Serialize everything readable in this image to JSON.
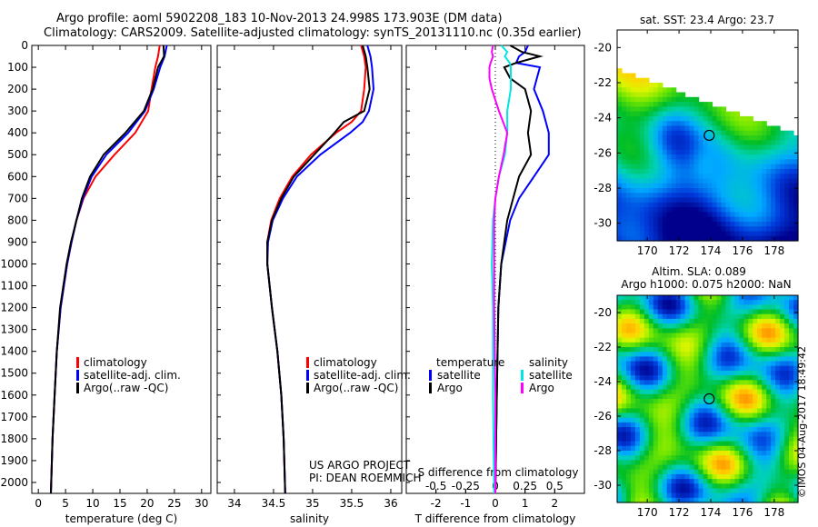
{
  "title_line1": "Argo profile: aoml 5902208_183 10-Nov-2013 24.998S 173.903E (DM data)",
  "title_line2": "Climatology: CARS2009. Satellite-adjusted climatology: synTS_20131110.nc (0.35d earlier)",
  "credit": "©IMOS 04-Aug-2017 18:49:42",
  "project_line1": "US ARGO PROJECT",
  "project_line2": "PI: DEAN ROEMMICH",
  "colors": {
    "climatology": "#ff0000",
    "satellite": "#0000ff",
    "argo": "#000000",
    "s_satellite": "#00e5e5",
    "s_argo": "#ff00ff"
  },
  "chart_data": [
    {
      "type": "line",
      "name": "temperature-profile",
      "xlabel": "temperature (deg C)",
      "ylabel": "",
      "xlim": [
        -1.2,
        31.7
      ],
      "ylim": [
        2050,
        0
      ],
      "xticks": [
        0,
        5,
        10,
        15,
        20,
        25,
        30
      ],
      "yticks": [
        0,
        100,
        200,
        300,
        400,
        500,
        600,
        700,
        800,
        900,
        1000,
        1100,
        1200,
        1300,
        1400,
        1500,
        1600,
        1700,
        1800,
        1900,
        2000
      ],
      "depth": [
        0,
        50,
        100,
        200,
        300,
        400,
        500,
        600,
        700,
        800,
        900,
        1000,
        1200,
        1400,
        1600,
        1800,
        2050
      ],
      "series": [
        {
          "name": "climatology",
          "color": "#ff0000",
          "values": [
            22.3,
            22,
            21.5,
            20.8,
            20.2,
            17.8,
            14,
            10.5,
            8.3,
            7,
            6.1,
            5.3,
            4.1,
            3.4,
            3,
            2.6,
            2.3
          ]
        },
        {
          "name": "satellite-adj. clim.",
          "color": "#0000ff",
          "values": [
            23.6,
            23.2,
            22.4,
            21.2,
            19.6,
            16.5,
            12.5,
            9.8,
            8.2,
            7,
            6.1,
            5.3,
            4.1,
            3.4,
            3,
            2.6,
            2.3
          ]
        },
        {
          "name": "Argo(..raw -QC)",
          "color": "#000000",
          "values": [
            23,
            23.1,
            22,
            21,
            19.4,
            16,
            12,
            9.5,
            8,
            7,
            6,
            5.2,
            4,
            3.4,
            3,
            2.6,
            2.3
          ]
        }
      ],
      "legend": [
        "climatology",
        "satellite-adj. clim.",
        "Argo(..raw -QC)"
      ],
      "legend_position": "lower-center"
    },
    {
      "type": "line",
      "name": "salinity-profile",
      "xlabel": "salinity",
      "xlim": [
        33.78,
        36.14
      ],
      "ylim": [
        2050,
        0
      ],
      "xticks": [
        34,
        34.5,
        35,
        35.5,
        36
      ],
      "depth": [
        0,
        50,
        100,
        200,
        300,
        350,
        400,
        500,
        600,
        700,
        800,
        900,
        1000,
        1200,
        1400,
        1600,
        1800,
        2050
      ],
      "series": [
        {
          "name": "climatology",
          "color": "#ff0000",
          "values": [
            35.62,
            35.66,
            35.68,
            35.66,
            35.62,
            35.5,
            35.3,
            34.98,
            34.74,
            34.58,
            34.47,
            34.42,
            34.42,
            34.48,
            34.55,
            34.6,
            34.63,
            34.65
          ]
        },
        {
          "name": "satellite-adj. clim.",
          "color": "#0000ff",
          "values": [
            35.7,
            35.74,
            35.76,
            35.78,
            35.72,
            35.64,
            35.48,
            35.1,
            34.8,
            34.62,
            34.49,
            34.43,
            34.42,
            34.48,
            34.55,
            34.6,
            34.63,
            34.65
          ]
        },
        {
          "name": "Argo(..raw -QC)",
          "color": "#000000",
          "values": [
            35.64,
            35.68,
            35.7,
            35.73,
            35.66,
            35.4,
            35.28,
            35.02,
            34.76,
            34.6,
            34.48,
            34.42,
            34.42,
            34.48,
            34.55,
            34.6,
            34.63,
            34.65
          ]
        }
      ],
      "legend": [
        "climatology",
        "satellite-adj. clim.",
        "Argo(..raw -QC)"
      ]
    },
    {
      "type": "line",
      "name": "difference-profile",
      "xlabel": "T difference from climatology",
      "x2label": "S difference from climatology",
      "xlim": [
        -3,
        3
      ],
      "x2lim": [
        -0.75,
        0.75
      ],
      "ylim": [
        2050,
        0
      ],
      "xticks": [
        -2,
        -1,
        0,
        1,
        2
      ],
      "x2ticks": [
        "-0.5",
        "-0.25",
        "0",
        "0.25",
        "0.5"
      ],
      "x2tick_values": [
        -0.5,
        -0.25,
        0,
        0.25,
        0.5
      ],
      "depth": [
        0,
        30,
        50,
        80,
        100,
        150,
        200,
        300,
        400,
        500,
        600,
        700,
        800,
        1000,
        1200,
        1600,
        2050
      ],
      "series": [
        {
          "name": "temperature satellite",
          "axis": "T",
          "color": "#0000ff",
          "values": [
            1.1,
            1.0,
            0.8,
            0.7,
            1.5,
            1.4,
            1.3,
            1.6,
            1.8,
            1.8,
            1.3,
            0.8,
            0.5,
            0.2,
            0.1,
            0.05,
            0
          ]
        },
        {
          "name": "temperature Argo",
          "axis": "T",
          "color": "#000000",
          "values": [
            0.5,
            0.9,
            1.5,
            0.7,
            0.3,
            0.5,
            1.0,
            1.2,
            1.1,
            1.2,
            0.8,
            0.6,
            0.4,
            0.2,
            0.1,
            0.05,
            0
          ]
        },
        {
          "name": "salinity satellite",
          "axis": "S",
          "color": "#00e5e5",
          "values": [
            0.05,
            0.1,
            0.08,
            0.12,
            0.13,
            0.13,
            0.13,
            0.1,
            0.1,
            0.08,
            0.03,
            0,
            -0.02,
            -0.03,
            -0.02,
            -0.02,
            -0.01
          ]
        },
        {
          "name": "salinity Argo",
          "axis": "S",
          "color": "#ff00ff",
          "values": [
            -0.02,
            -0.03,
            -0.02,
            -0.04,
            -0.05,
            -0.05,
            -0.03,
            0.03,
            0.1,
            0.07,
            0.03,
            0,
            -0.01,
            -0.01,
            -0.01,
            0,
            0
          ]
        }
      ],
      "legend_headers": [
        "temperature",
        "salinity"
      ],
      "legend": {
        "temperature": [
          "satellite",
          "Argo"
        ],
        "salinity": [
          "satellite",
          "Argo"
        ]
      }
    },
    {
      "type": "heatmap",
      "name": "sst-map",
      "title": "sat. SST: 23.4  Argo: 23.7",
      "xticks": [
        170,
        172,
        174,
        176,
        178
      ],
      "yticks": [
        -20,
        -22,
        -24,
        -26,
        -28,
        -30
      ],
      "xlim": [
        168.1,
        179.5
      ],
      "ylim": [
        -31,
        -19
      ],
      "marker": {
        "lon": 173.903,
        "lat": -24.998
      }
    },
    {
      "type": "heatmap",
      "name": "sla-map",
      "title_line1": "Altim. SLA: 0.089",
      "title_line2": "Argo h1000: 0.075 h2000: NaN",
      "xticks": [
        170,
        172,
        174,
        176,
        178
      ],
      "yticks": [
        -20,
        -22,
        -24,
        -26,
        -28,
        -30
      ],
      "xlim": [
        168.1,
        179.5
      ],
      "ylim": [
        -31,
        -19
      ],
      "marker": {
        "lon": 173.903,
        "lat": -24.998
      }
    }
  ]
}
